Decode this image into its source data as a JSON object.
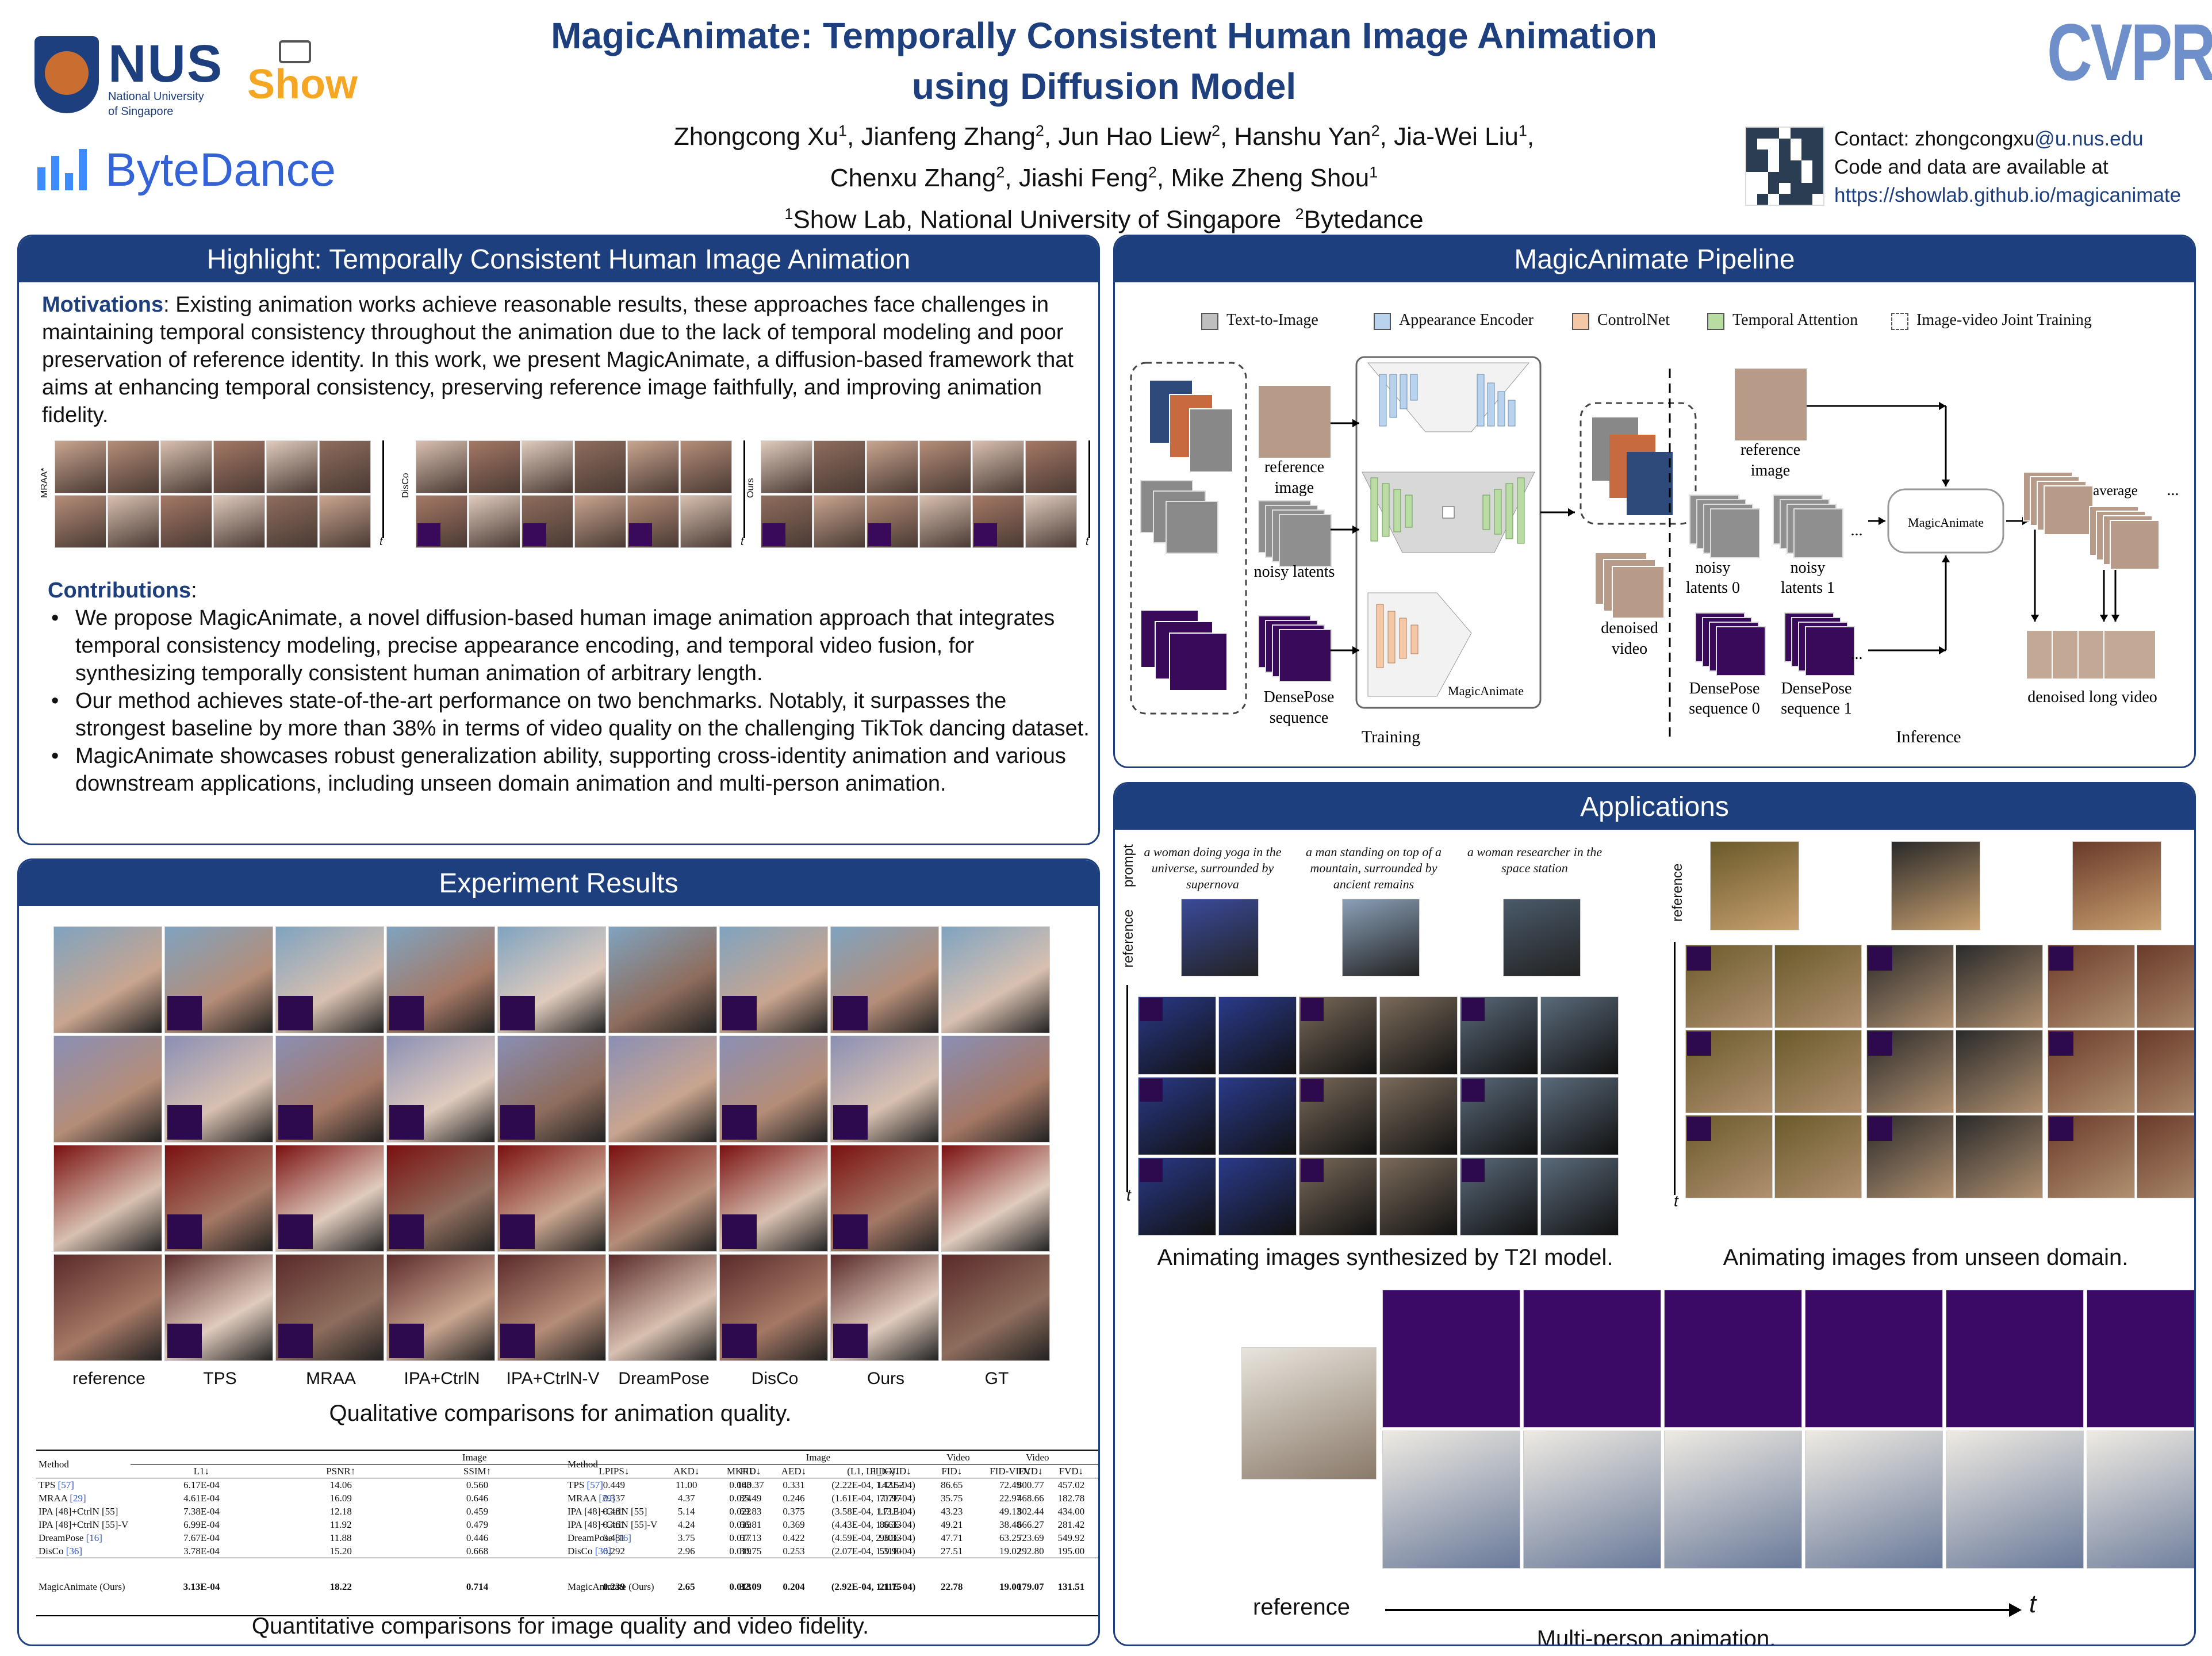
{
  "header": {
    "title_line1": "MagicAnimate: Temporally Consistent Human Image Animation",
    "title_line2": "using Diffusion Model",
    "authors": [
      {
        "name": "Zhongcong Xu",
        "aff": "1"
      },
      {
        "name": "Jianfeng Zhang",
        "aff": "2"
      },
      {
        "name": "Jun Hao Liew",
        "aff": "2"
      },
      {
        "name": "Hanshu Yan",
        "aff": "2"
      },
      {
        "name": "Jia-Wei Liu",
        "aff": "1"
      },
      {
        "name": "Chenxu Zhang",
        "aff": "2"
      },
      {
        "name": "Jiashi Feng",
        "aff": "2"
      },
      {
        "name": "Mike Zheng Shou",
        "aff": "1"
      }
    ],
    "affil1": "Show Lab, National University of Singapore",
    "affil2": "Bytedance",
    "logos": {
      "nus": "NUS",
      "nus_sub1": "National University",
      "nus_sub2": "of Singapore",
      "show": "Show",
      "bytedance": "ByteDance",
      "cvpr": "CVPR"
    },
    "contact_prefix": "Contact: zhongcongxu",
    "contact_domain": "@u.nus.edu",
    "contact_line2": "Code and data are available at",
    "contact_url": "https://showlab.github.io/magicanimate"
  },
  "highlight": {
    "title": "Highlight: Temporally Consistent Human Image Animation",
    "motivations_label": "Motivations",
    "motivations_text": ": Existing animation works achieve reasonable results, these approaches face challenges in maintaining temporal consistency throughout the animation due to the lack of temporal modeling and poor preservation of reference identity. In this work, we present MagicAnimate, a diffusion-based framework that aims at enhancing temporal consistency, preserving reference image faithfully, and improving animation fidelity.",
    "strip_labels": [
      "MRAA*",
      "DisCo",
      "Ours"
    ],
    "t_label": "t",
    "contributions_label": "Contributions",
    "contributions": [
      "We propose MagicAnimate, a novel diffusion-based human image animation approach that integrates temporal consistency modeling, precise appearance encoding, and temporal video fusion, for synthesizing temporally consistent human animation of arbitrary length.",
      "Our method achieves state-of-the-art performance on two benchmarks. Notably, it surpasses the strongest baseline by more than 38% in terms of video quality on the challenging TikTok dancing dataset.",
      "MagicAnimate showcases robust generalization ability, supporting cross-identity animation and various downstream applications, including unseen domain animation and multi-person animation."
    ]
  },
  "pipeline": {
    "title": "MagicAnimate Pipeline",
    "legend": [
      {
        "label": "Text-to-Image",
        "color": "#bfbfbf"
      },
      {
        "label": "Appearance Encoder",
        "color": "#b9d3ee"
      },
      {
        "label": "ControlNet",
        "color": "#f4c7a6"
      },
      {
        "label": "Temporal Attention",
        "color": "#b8dca2"
      },
      {
        "label": "Image-video Joint Training",
        "color": "#ffffff"
      }
    ],
    "labels": {
      "reference_image": "reference image",
      "noisy_latents": "noisy latents",
      "densepose_sequence": "DensePose sequence",
      "magicanimate": "MagicAnimate",
      "denoised_video": "denoised video",
      "training": "Training",
      "inference": "Inference",
      "noisy_latents_0": "noisy latents 0",
      "noisy_latents_1": "noisy latents 1",
      "densepose_seq_0": "DensePose sequence 0",
      "densepose_seq_1": "DensePose sequence 1",
      "average": "average",
      "denoised_long_video": "denoised long video",
      "ellipsis": "..."
    }
  },
  "experiments": {
    "title": "Experiment Results",
    "columns": [
      "reference",
      "TPS",
      "MRAA",
      "IPA+CtrlN",
      "IPA+CtrlN-V",
      "DreamPose",
      "DisCo",
      "Ours",
      "GT"
    ],
    "qual_caption": "Qualitative comparisons for animation quality.",
    "quant_caption": "Quantitative comparisons for image quality and video fidelity.",
    "table1": {
      "method_header": "Method",
      "image_header": "Image",
      "video_header": "Video",
      "cols": [
        "L1↓",
        "PSNR↑",
        "SSIM↑",
        "LPIPS↓",
        "FID↓",
        "FID-VID↓",
        "FVD↓"
      ],
      "rows": [
        {
          "method": "TPS",
          "ref": "[57]",
          "vals": [
            "6.17E-04",
            "14.06",
            "0.560",
            "0.449",
            "140.37",
            "142.52",
            "800.77"
          ]
        },
        {
          "method": "MRAA",
          "ref": "[29]",
          "vals": [
            "4.61E-04",
            "16.09",
            "0.646",
            "0.337",
            "85.49",
            "71.97",
            "468.66"
          ]
        },
        {
          "method": "IPA [48]+CtrlN [55]",
          "ref": "",
          "vals": [
            "7.38E-04",
            "12.18",
            "0.459",
            "0.481",
            "69.83",
            "113.31",
            "802.44"
          ]
        },
        {
          "method": "IPA [48]+CtrlN [55]-V",
          "ref": "",
          "vals": [
            "6.99E-04",
            "11.92",
            "0.479",
            "0.461",
            "66.81",
            "86.33",
            "666.27"
          ]
        },
        {
          "method": "DreamPose",
          "ref": "[16]",
          "vals": [
            "7.67E-04",
            "11.88",
            "0.446",
            "0.481",
            "67.13",
            "98.33",
            "723.69"
          ]
        },
        {
          "method": "DisCo",
          "ref": "[36]",
          "vals": [
            "3.78E-04",
            "15.20",
            "0.668",
            "0.292",
            "30.75",
            "59.90",
            "292.80"
          ]
        },
        {
          "method": "MagicAnimate (Ours)",
          "ref": "",
          "vals": [
            "3.13E-04",
            "18.22",
            "0.714",
            "0.239",
            "32.09",
            "21.75",
            "179.07"
          ]
        }
      ]
    },
    "table2": {
      "method_header": "Method",
      "image_header": "Image",
      "video_header": "Video",
      "cols": [
        "AKD↓",
        "MKR↓",
        "AED↓",
        "(L1, L1_tG)↓",
        "FID↓",
        "FID-VID↓",
        "FVD↓"
      ],
      "rows": [
        {
          "method": "TPS",
          "ref": "[57]",
          "vals": [
            "11.00",
            "0.063",
            "0.331",
            "(2.22E-04, 1.43E-04)",
            "86.65",
            "72.49",
            "457.02"
          ]
        },
        {
          "method": "MRAA",
          "ref": "[29]",
          "vals": [
            "4.37",
            "0.024",
            "0.246",
            "(1.61E-04, 1.07E-04)",
            "35.75",
            "22.97",
            "182.78"
          ]
        },
        {
          "method": "IPA [48]+CtrlN [55]",
          "ref": "",
          "vals": [
            "5.14",
            "0.022",
            "0.375",
            "(3.58E-04, 1.71E-04)",
            "43.23",
            "49.13",
            "434.00"
          ]
        },
        {
          "method": "IPA [48]+CtrlN [55]-V",
          "ref": "",
          "vals": [
            "4.24",
            "0.019",
            "0.369",
            "(4.43E-04, 1.66E-04)",
            "49.21",
            "38.48",
            "281.42"
          ]
        },
        {
          "method": "DreamPose",
          "ref": "[16]",
          "vals": [
            "3.75",
            "0.017",
            "0.422",
            "(4.59E-04, 2.30E-04)",
            "47.71",
            "63.25",
            "549.92"
          ]
        },
        {
          "method": "DisCo",
          "ref": "[36]",
          "vals": [
            "2.96",
            "0.019",
            "0.253",
            "(2.07E-04, 1.31E-04)",
            "27.51",
            "19.02",
            "195.00"
          ]
        },
        {
          "method": "MagicAnimate (Ours)",
          "ref": "",
          "vals": [
            "2.65",
            "0.013",
            "0.204",
            "(2.92E-04, 1.11E-04)",
            "22.78",
            "19.00",
            "131.51"
          ]
        }
      ]
    }
  },
  "applications": {
    "title": "Applications",
    "prompt_label": "prompt",
    "reference_label": "reference",
    "t_label": "t",
    "prompts": [
      "a woman doing yoga in the universe, surrounded by supernova",
      "a man standing on top of a mountain, surrounded by ancient remains",
      "a woman researcher in the space station"
    ],
    "t2i_caption": "Animating images synthesized by T2I model.",
    "unseen_caption": "Animating images from unseen domain.",
    "multi_caption": "Multi-person animation.",
    "multi_reference": "reference"
  },
  "colors": {
    "brand": "#1e3f7d",
    "accent": "#e87722"
  }
}
